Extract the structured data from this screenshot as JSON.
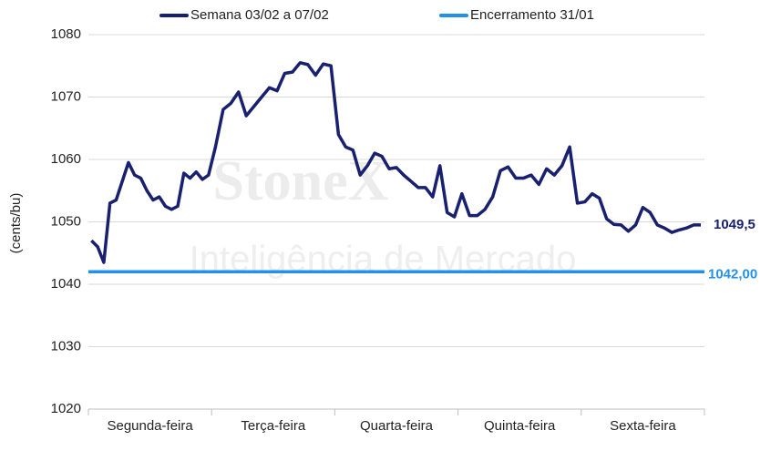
{
  "chart_data": {
    "type": "line",
    "y_label": "(cents/bu)",
    "watermark": [
      "StoneX",
      "Inteligência de Mercado"
    ],
    "categories": [
      "Segunda-feira",
      "Terça-feira",
      "Quarta-feira",
      "Quinta-feira",
      "Sexta-feira"
    ],
    "ylim": [
      1020,
      1080
    ],
    "yticks": [
      1020,
      1030,
      1040,
      1050,
      1060,
      1070,
      1080
    ],
    "grid": true,
    "series": [
      {
        "name": "Semana 03/02 a 07/02",
        "color": "#18206f",
        "values": [
          [
            1047,
            1046,
            1043.5,
            1053,
            1053.5,
            1056.5,
            1059.5,
            1057.5,
            1057,
            1055,
            1053.5,
            1054,
            1052.5,
            1052,
            1052.5,
            1057.8,
            1057,
            1058,
            1056.8,
            1057.5
          ],
          [
            1062,
            1068,
            1069,
            1070.8,
            1067,
            1068.5,
            1070,
            1071.5,
            1071,
            1073.8,
            1074,
            1075.5,
            1075.2,
            1073.5,
            1075.3,
            1075
          ],
          [
            1064,
            1062,
            1061.5,
            1057.5,
            1059,
            1061,
            1060.5,
            1058.5,
            1058.7,
            1057.5,
            1056.5,
            1055.5,
            1055.5,
            1054,
            1059,
            1051.5,
            1050.8
          ],
          [
            1054.5,
            1051,
            1051,
            1052,
            1054,
            1058.2,
            1058.8,
            1057,
            1057,
            1057.5,
            1056,
            1058.5,
            1057.5,
            1059,
            1062,
            1053
          ],
          [
            1053.2,
            1054.5,
            1053.8,
            1050.5,
            1049.6,
            1049.5,
            1048.5,
            1049.5,
            1052.3,
            1051.5,
            1049.5,
            1049,
            1048.3,
            1048.7,
            1049,
            1049.5,
            1049.5
          ]
        ],
        "end_label": "1049,5"
      },
      {
        "name": "Encerramento 31/01",
        "color": "#2391ea",
        "value": 1042,
        "value_label": "1042,00"
      }
    ]
  }
}
